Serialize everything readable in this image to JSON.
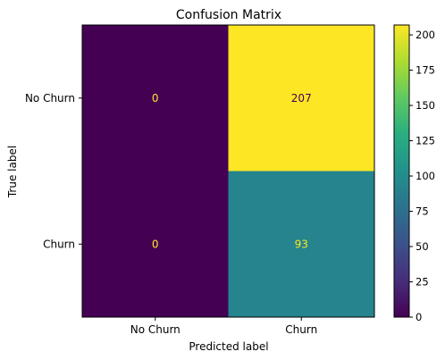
{
  "chart_data": {
    "type": "heatmap",
    "title": "Confusion Matrix",
    "xlabel": "Predicted label",
    "ylabel": "True label",
    "x_categories": [
      "No Churn",
      "Churn"
    ],
    "y_categories": [
      "No Churn",
      "Churn"
    ],
    "values": [
      [
        0,
        207
      ],
      [
        0,
        93
      ]
    ],
    "colormap": "viridis",
    "colorbar": {
      "min": 0,
      "max": 207,
      "ticks": [
        0,
        25,
        50,
        75,
        100,
        125,
        150,
        175,
        200
      ]
    },
    "cell_text_colors": [
      [
        "#fde725",
        "#440154"
      ],
      [
        "#fde725",
        "#fde725"
      ]
    ],
    "grid": false
  }
}
